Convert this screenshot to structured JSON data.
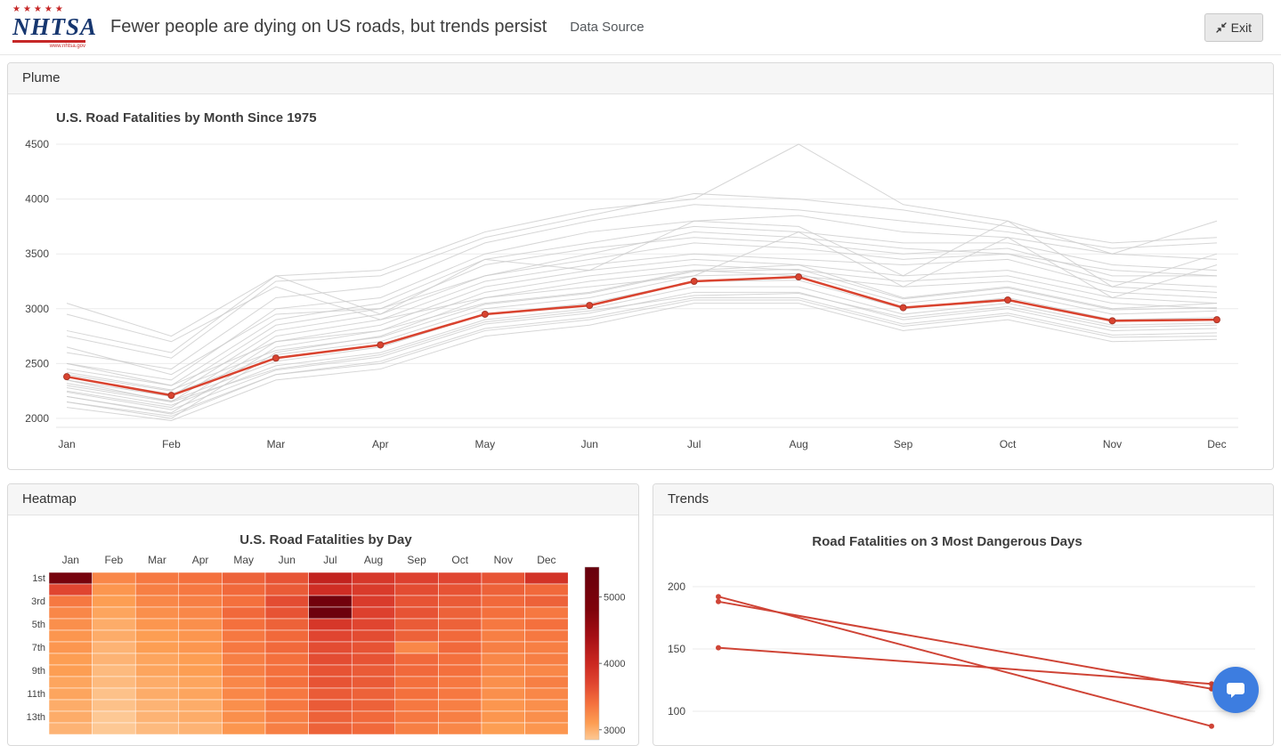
{
  "header": {
    "logo": {
      "stars": "★★★★★",
      "name": "NHTSA",
      "url_text": "www.nhtsa.gov"
    },
    "title": "Fewer people are dying on US roads, but trends persist",
    "data_source_label": "Data Source",
    "exit_label": "Exit"
  },
  "panels": {
    "plume": {
      "title": "Plume"
    },
    "heatmap": {
      "title": "Heatmap"
    },
    "trends": {
      "title": "Trends"
    }
  },
  "colors": {
    "highlight_red": "#d9432f",
    "gray_line": "#cccccc",
    "grid": "#ebebeb",
    "chat_blue": "#3d7de0"
  },
  "chart_data": [
    {
      "id": "plume",
      "type": "line",
      "title": "U.S. Road Fatalities by Month Since 1975",
      "categories": [
        "Jan",
        "Feb",
        "Mar",
        "Apr",
        "May",
        "Jun",
        "Jul",
        "Aug",
        "Sep",
        "Oct",
        "Nov",
        "Dec"
      ],
      "yticks": [
        2000,
        2500,
        3000,
        3500,
        4000,
        4500
      ],
      "ylim": [
        1950,
        4560
      ],
      "grid": true,
      "highlight": {
        "name": "highlight-year",
        "color": "#d9432f",
        "values": [
          2380,
          2210,
          2550,
          2670,
          2950,
          3030,
          3250,
          3290,
          3010,
          3080,
          2890,
          2900
        ]
      },
      "series": [
        {
          "values": [
            2800,
            2600,
            3300,
            3350,
            3700,
            3900,
            4000,
            4500,
            3950,
            3800,
            3500,
            3800
          ]
        },
        {
          "values": [
            2750,
            2550,
            3250,
            3300,
            3650,
            3850,
            4050,
            4000,
            3900,
            3750,
            3600,
            3650
          ]
        },
        {
          "values": [
            2600,
            2450,
            3100,
            3200,
            3600,
            3800,
            3950,
            3900,
            3800,
            3700,
            3550,
            3600
          ]
        },
        {
          "values": [
            2500,
            2350,
            3000,
            3100,
            3500,
            3700,
            3800,
            3850,
            3700,
            3650,
            3500,
            3450
          ]
        },
        {
          "values": [
            2450,
            2300,
            2900,
            3050,
            3450,
            3600,
            3750,
            3700,
            3600,
            3600,
            3400,
            3350
          ]
        },
        {
          "values": [
            2400,
            2250,
            2850,
            3000,
            3400,
            3550,
            3650,
            3600,
            3500,
            3550,
            3300,
            3300
          ]
        },
        {
          "values": [
            2350,
            2200,
            2800,
            2950,
            3300,
            3450,
            3600,
            3550,
            3450,
            3500,
            3250,
            3200
          ]
        },
        {
          "values": [
            2300,
            2150,
            2750,
            2900,
            3250,
            3400,
            3500,
            3450,
            3400,
            3450,
            3200,
            3150
          ]
        },
        {
          "values": [
            2250,
            2100,
            2700,
            2850,
            3200,
            3350,
            3450,
            3400,
            3300,
            3350,
            3150,
            3100
          ]
        },
        {
          "values": [
            2200,
            2050,
            2650,
            2800,
            3150,
            3300,
            3400,
            3350,
            3250,
            3300,
            3100,
            3050
          ]
        },
        {
          "values": [
            2150,
            2000,
            2600,
            2750,
            3100,
            3250,
            3350,
            3300,
            3200,
            3250,
            3050,
            3000
          ]
        },
        {
          "values": [
            2380,
            2220,
            2580,
            2700,
            3000,
            3100,
            3300,
            3320,
            3050,
            3150,
            2950,
            2980
          ]
        },
        {
          "values": [
            2320,
            2160,
            2520,
            2650,
            2950,
            3050,
            3250,
            3260,
            3000,
            3100,
            2900,
            2920
          ]
        },
        {
          "values": [
            2280,
            2120,
            2480,
            2600,
            2900,
            3000,
            3200,
            3200,
            2950,
            3050,
            2850,
            2870
          ]
        },
        {
          "values": [
            2240,
            2080,
            2440,
            2560,
            2860,
            2960,
            3150,
            3150,
            2900,
            3000,
            2800,
            2820
          ]
        },
        {
          "values": [
            2200,
            2040,
            2400,
            2520,
            2820,
            2920,
            3100,
            3100,
            2860,
            2960,
            2760,
            2780
          ]
        },
        {
          "values": [
            2350,
            2150,
            2450,
            2580,
            2880,
            2980,
            3120,
            3140,
            2920,
            3020,
            2830,
            2850
          ]
        },
        {
          "values": [
            2420,
            2260,
            2620,
            2740,
            3040,
            3140,
            3340,
            3360,
            3090,
            3190,
            2990,
            3010
          ]
        },
        {
          "values": [
            2950,
            2700,
            3200,
            2900,
            3100,
            3200,
            3300,
            3700,
            3200,
            3650,
            3100,
            3400
          ]
        },
        {
          "values": [
            3050,
            2750,
            3300,
            2950,
            3450,
            3350,
            3800,
            3750,
            3300,
            3800,
            3200,
            3500
          ]
        },
        {
          "values": [
            2100,
            1980,
            2350,
            2450,
            2750,
            2850,
            3050,
            3050,
            2800,
            2900,
            2700,
            2720
          ]
        },
        {
          "values": [
            2150,
            2020,
            2400,
            2500,
            2800,
            2900,
            3080,
            3080,
            2840,
            2940,
            2740,
            2750
          ]
        },
        {
          "values": [
            2500,
            2300,
            2700,
            2800,
            3050,
            3150,
            3350,
            3400,
            3100,
            3200,
            3000,
            3050
          ]
        },
        {
          "values": [
            2650,
            2400,
            2950,
            3000,
            3300,
            3500,
            3700,
            3650,
            3550,
            3500,
            3350,
            3300
          ]
        }
      ]
    },
    {
      "id": "heatmap",
      "type": "heatmap",
      "title": "U.S. Road Fatalities by Day",
      "months": [
        "Jan",
        "Feb",
        "Mar",
        "Apr",
        "May",
        "Jun",
        "Jul",
        "Aug",
        "Sep",
        "Oct",
        "Nov",
        "Dec"
      ],
      "day_labels": [
        "1st",
        "3rd",
        "5th",
        "7th",
        "9th",
        "11th",
        "13th"
      ],
      "rows": [
        [
          5050,
          3250,
          3350,
          3400,
          3500,
          3600,
          4100,
          3850,
          3750,
          3700,
          3600,
          3900
        ],
        [
          3700,
          3150,
          3300,
          3350,
          3450,
          3550,
          3950,
          3800,
          3650,
          3600,
          3500,
          3450
        ],
        [
          3350,
          3100,
          3250,
          3300,
          3400,
          3650,
          5150,
          3800,
          3600,
          3550,
          3450,
          3500
        ],
        [
          3250,
          3050,
          3200,
          3250,
          3450,
          3600,
          5300,
          3750,
          3600,
          3500,
          3400,
          3350
        ],
        [
          3200,
          3000,
          3150,
          3200,
          3400,
          3500,
          3850,
          3700,
          3550,
          3500,
          3350,
          3400
        ],
        [
          3150,
          3000,
          3100,
          3150,
          3350,
          3450,
          3700,
          3650,
          3500,
          3450,
          3300,
          3350
        ],
        [
          3150,
          2950,
          3100,
          3150,
          3350,
          3450,
          3650,
          3600,
          3250,
          3450,
          3300,
          3300
        ],
        [
          3100,
          2950,
          3050,
          3100,
          3300,
          3400,
          3650,
          3600,
          3450,
          3400,
          3250,
          3300
        ],
        [
          3100,
          2900,
          3050,
          3100,
          3300,
          3400,
          3600,
          3550,
          3450,
          3400,
          3250,
          3250
        ],
        [
          3050,
          2900,
          3000,
          3050,
          3250,
          3400,
          3600,
          3550,
          3400,
          3350,
          3200,
          3300
        ],
        [
          3050,
          2850,
          3000,
          3050,
          3250,
          3350,
          3550,
          3500,
          3400,
          3350,
          3200,
          3250
        ],
        [
          3000,
          2850,
          2950,
          3000,
          3200,
          3350,
          3550,
          3500,
          3350,
          3300,
          3150,
          3200
        ],
        [
          3000,
          2800,
          2950,
          3000,
          3200,
          3300,
          3500,
          3450,
          3350,
          3300,
          3150,
          3200
        ],
        [
          2950,
          2800,
          2900,
          2950,
          3150,
          3300,
          3500,
          3450,
          3300,
          3250,
          3100,
          3150
        ]
      ],
      "colorbar": {
        "ticks": [
          3000,
          4000,
          5000
        ],
        "min": 2850,
        "max": 5450
      },
      "colorscale": [
        [
          2800,
          "#fdc894"
        ],
        [
          3100,
          "#fd9e53"
        ],
        [
          3400,
          "#f4703d"
        ],
        [
          3700,
          "#e04530"
        ],
        [
          4000,
          "#cb2821"
        ],
        [
          4400,
          "#a50f15"
        ],
        [
          4800,
          "#7f030b"
        ],
        [
          5450,
          "#67000d"
        ]
      ]
    },
    {
      "id": "trends",
      "type": "line",
      "title": "Road Fatalities on 3 Most Dangerous Days",
      "yticks": [
        100,
        150,
        200
      ],
      "color": "#cf4436",
      "grid": true,
      "series": [
        {
          "start": 192,
          "end": 88
        },
        {
          "start": 188,
          "end": 118
        },
        {
          "start": 151,
          "end": 122
        }
      ]
    }
  ]
}
